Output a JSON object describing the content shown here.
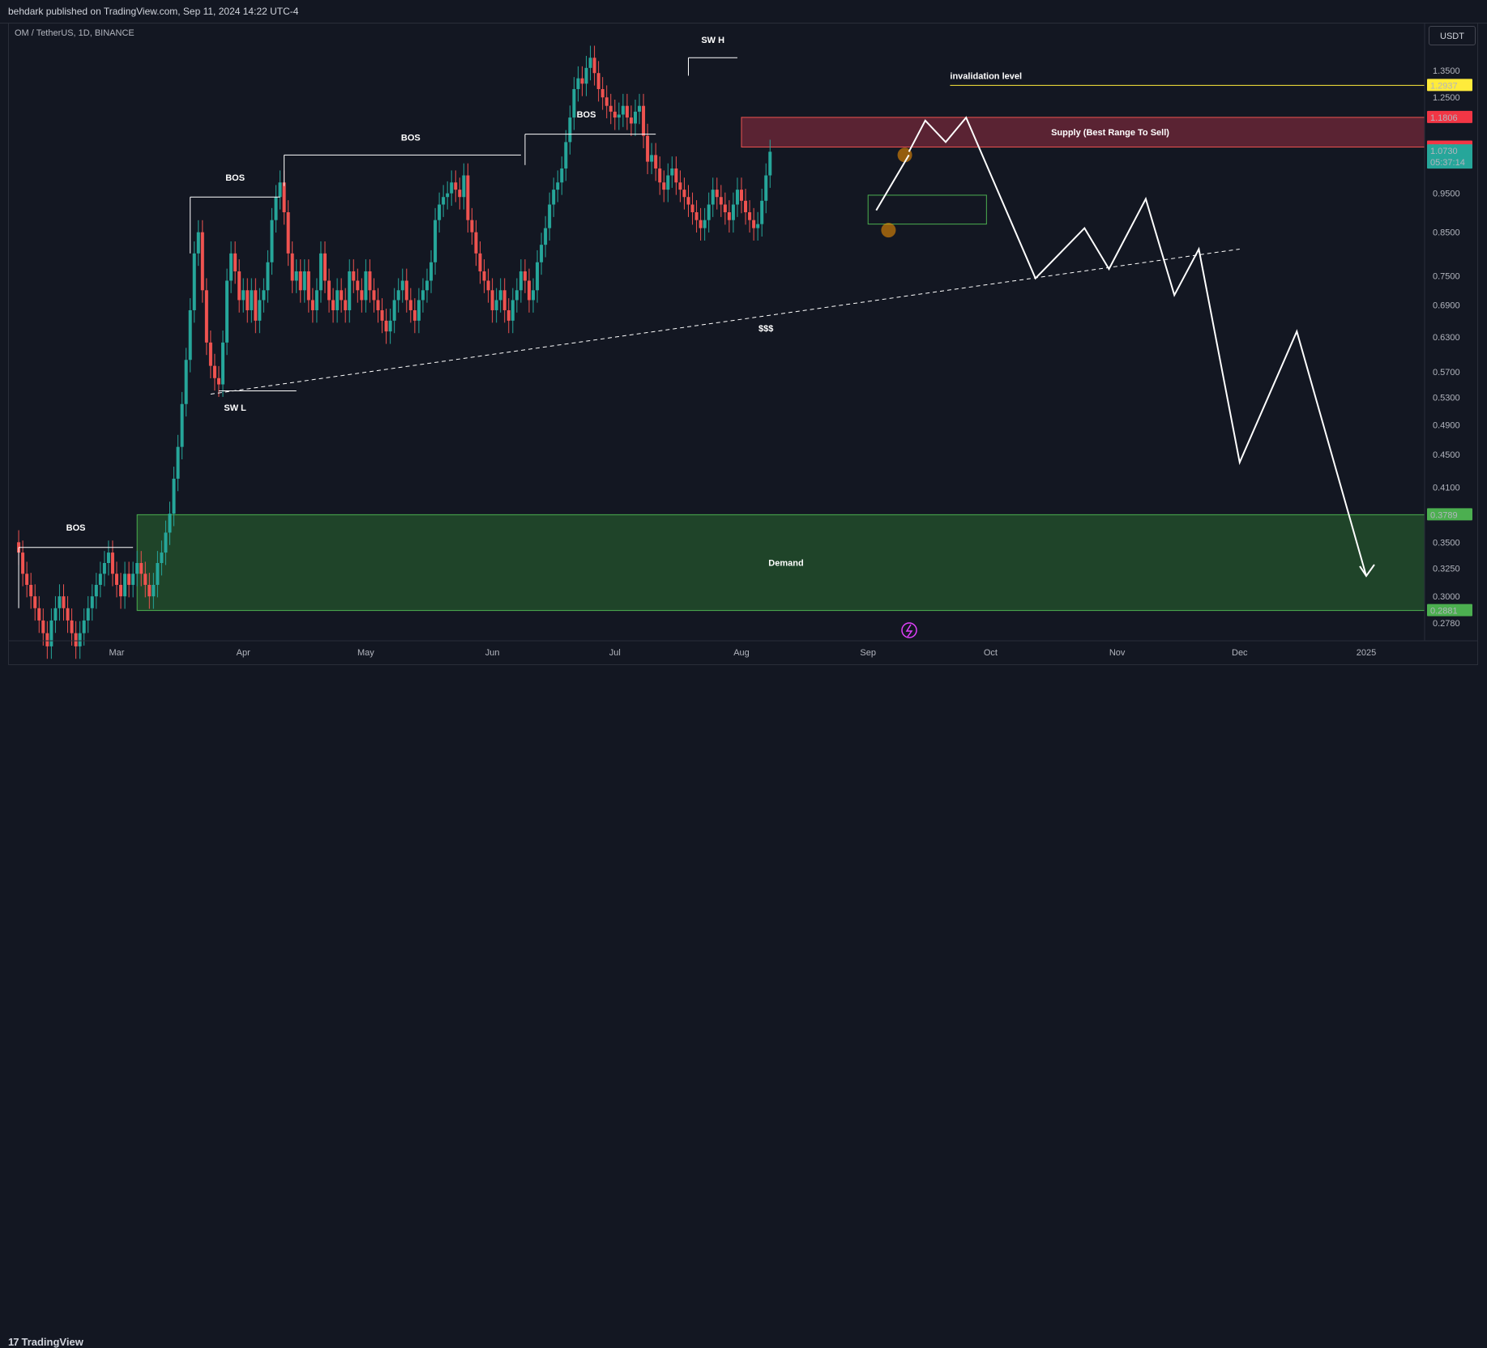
{
  "header": {
    "published": "behdark published on TradingView.com, Sep 11, 2024 14:22 UTC-4"
  },
  "symbol": {
    "info": "OM / TetherUS, 1D, BINANCE"
  },
  "currency": "USDT",
  "footer": {
    "brand": "TradingView",
    "logo_glyph": "17"
  },
  "colors": {
    "background": "#131722",
    "candle_up": "#26a69a",
    "candle_down": "#ef5350",
    "supply_zone": "#b2334a",
    "demand_zone": "#2e7d32",
    "invalidation": "#ffeb3b",
    "last_price": "#26a69a"
  },
  "chart_data": {
    "type": "candlestick",
    "symbol": "OM / TetherUS",
    "interval": "1D",
    "exchange": "BINANCE",
    "y_scale": "log",
    "ylim": [
      0.255,
      1.48
    ],
    "y_ticks": [
      "1.3500",
      "1.2500",
      "0.9500",
      "0.8500",
      "0.7500",
      "0.6900",
      "0.6300",
      "0.5700",
      "0.5300",
      "0.4900",
      "0.4500",
      "0.4100",
      "0.3500",
      "0.3250",
      "0.3000",
      "0.2780"
    ],
    "x_ticks": [
      "Mar",
      "Apr",
      "May",
      "Jun",
      "Jul",
      "Aug",
      "Sep",
      "Oct",
      "Nov",
      "Dec",
      "2025"
    ],
    "price_series_note": "daily closes, Feb 6 2024 to Sep 11 2024",
    "closes": [
      0.34,
      0.32,
      0.31,
      0.3,
      0.29,
      0.28,
      0.27,
      0.26,
      0.28,
      0.29,
      0.3,
      0.29,
      0.28,
      0.27,
      0.26,
      0.27,
      0.28,
      0.29,
      0.3,
      0.31,
      0.32,
      0.33,
      0.34,
      0.32,
      0.31,
      0.3,
      0.32,
      0.31,
      0.32,
      0.33,
      0.32,
      0.31,
      0.3,
      0.31,
      0.33,
      0.34,
      0.36,
      0.38,
      0.42,
      0.46,
      0.52,
      0.59,
      0.68,
      0.8,
      0.85,
      0.72,
      0.62,
      0.58,
      0.56,
      0.55,
      0.62,
      0.74,
      0.8,
      0.76,
      0.7,
      0.72,
      0.68,
      0.72,
      0.66,
      0.7,
      0.72,
      0.78,
      0.88,
      0.94,
      0.98,
      0.9,
      0.8,
      0.74,
      0.76,
      0.72,
      0.76,
      0.7,
      0.68,
      0.72,
      0.8,
      0.74,
      0.7,
      0.68,
      0.72,
      0.7,
      0.68,
      0.76,
      0.74,
      0.72,
      0.7,
      0.76,
      0.72,
      0.7,
      0.68,
      0.66,
      0.64,
      0.66,
      0.7,
      0.72,
      0.74,
      0.7,
      0.68,
      0.66,
      0.7,
      0.72,
      0.74,
      0.78,
      0.88,
      0.92,
      0.94,
      0.95,
      0.98,
      0.96,
      0.94,
      1.0,
      0.88,
      0.85,
      0.8,
      0.76,
      0.74,
      0.72,
      0.68,
      0.7,
      0.72,
      0.68,
      0.66,
      0.7,
      0.72,
      0.76,
      0.74,
      0.7,
      0.72,
      0.78,
      0.82,
      0.86,
      0.92,
      0.96,
      0.98,
      1.02,
      1.1,
      1.18,
      1.28,
      1.32,
      1.3,
      1.36,
      1.4,
      1.34,
      1.28,
      1.25,
      1.22,
      1.2,
      1.18,
      1.19,
      1.22,
      1.18,
      1.16,
      1.2,
      1.22,
      1.12,
      1.04,
      1.06,
      1.02,
      0.98,
      0.96,
      1.0,
      1.02,
      0.98,
      0.96,
      0.94,
      0.92,
      0.9,
      0.88,
      0.86,
      0.88,
      0.92,
      0.96,
      0.94,
      0.92,
      0.9,
      0.88,
      0.92,
      0.96,
      0.93,
      0.9,
      0.88,
      0.86,
      0.87,
      0.93,
      1.0,
      1.07
    ],
    "last_price": "1.0730",
    "countdown": "05:37:14",
    "price_labels": {
      "invalidation": "1.2937",
      "supply_top": "1.1806",
      "supply_bottom": "1.0844",
      "demand_top": "0.3789",
      "demand_bottom": "0.2881"
    },
    "zones": [
      {
        "name": "Supply (Best Range To Sell)",
        "from": 1.0844,
        "to": 1.1806,
        "start": "2024-08-01"
      },
      {
        "name": "Demand",
        "from": 0.2881,
        "to": 0.3789,
        "start": "2024-03-06"
      }
    ],
    "levels": [
      {
        "name": "invalidation level",
        "value": 1.2937
      }
    ],
    "annotations": [
      "BOS",
      "BOS",
      "BOS",
      "BOS",
      "SW H",
      "SW L",
      "$$$"
    ],
    "projection": [
      [
        "2024-09-11",
        1.07
      ],
      [
        "2024-09-15",
        1.17
      ],
      [
        "2024-09-20",
        1.1
      ],
      [
        "2024-09-25",
        1.18
      ],
      [
        "2024-10-12",
        0.745
      ],
      [
        "2024-10-24",
        0.86
      ],
      [
        "2024-10-30",
        0.765
      ],
      [
        "2024-11-08",
        0.935
      ],
      [
        "2024-11-15",
        0.71
      ],
      [
        "2024-11-21",
        0.81
      ],
      [
        "2024-12-01",
        0.44
      ],
      [
        "2024-12-15",
        0.64
      ],
      [
        "2025-01-01",
        0.318
      ]
    ]
  }
}
